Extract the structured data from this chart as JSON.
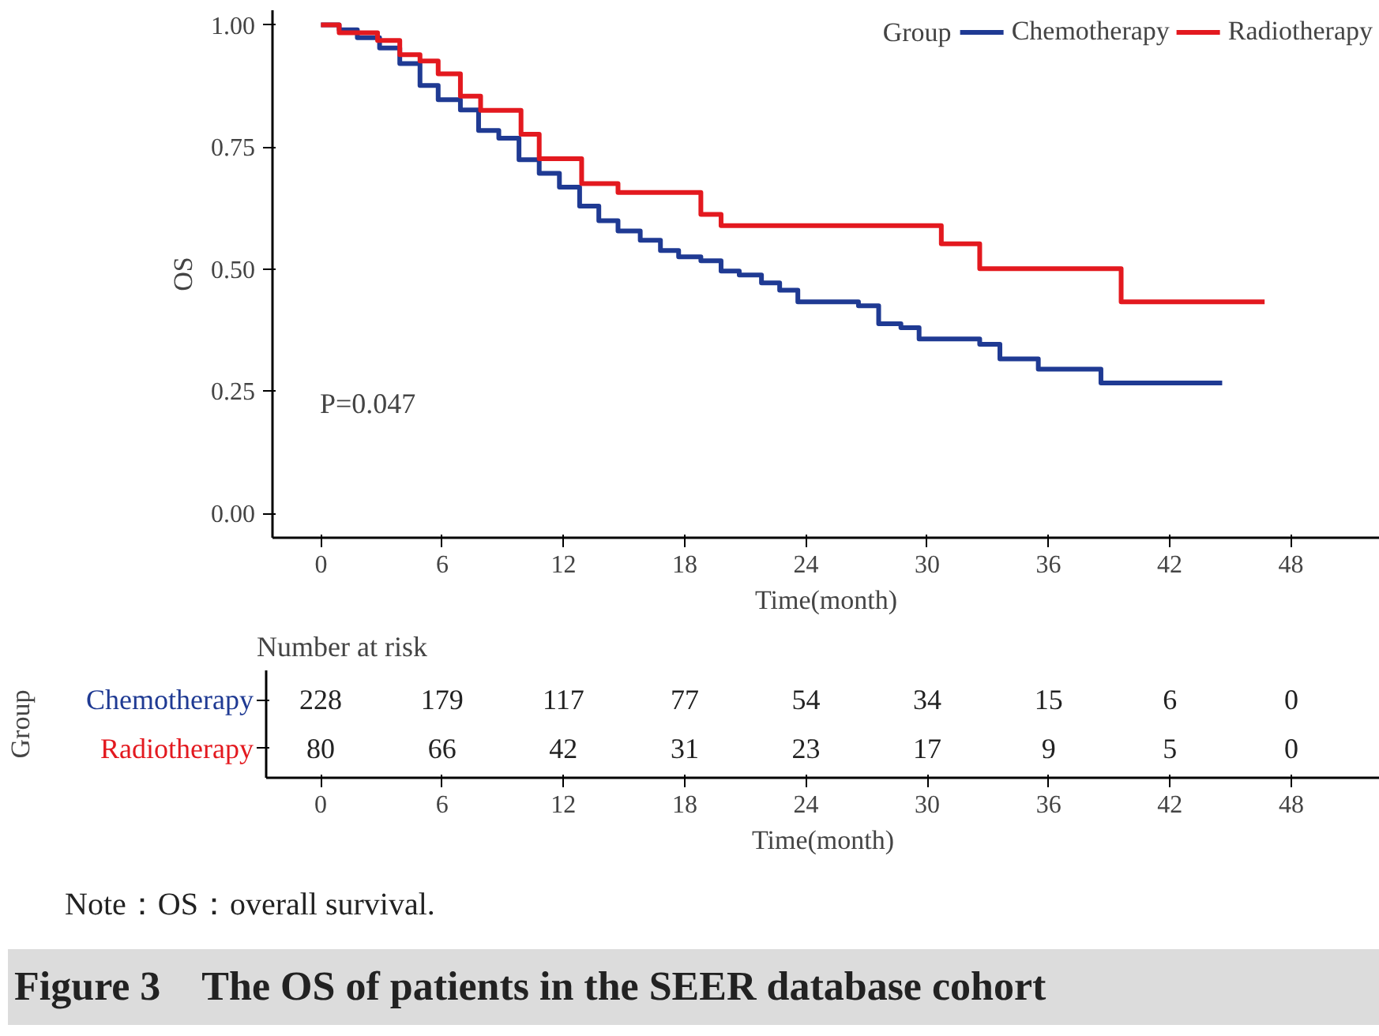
{
  "chart_data": [
    {
      "type": "step",
      "title": "Figure 3　The OS of patients in the SEER database cohort",
      "xlabel": "Time(month)",
      "ylabel": "OS",
      "legend_title": "Group",
      "legend": "top right",
      "grid": false,
      "line_style": "solid",
      "xlim": [
        -2.4,
        52.4
      ],
      "ylim": [
        -0.05,
        1.03
      ],
      "xticks": [
        0,
        6,
        12,
        18,
        24,
        30,
        36,
        42,
        48
      ],
      "yticks": [
        {
          "value": 0,
          "label": "0.00"
        },
        {
          "value": 0.25,
          "label": "0.25"
        },
        {
          "value": 0.5,
          "label": "0.50"
        },
        {
          "value": 0.75,
          "label": "0.75"
        },
        {
          "value": 1,
          "label": "1.00"
        }
      ],
      "series": [
        {
          "name": "Chemotherapy",
          "color": "#1f3a93",
          "x": [
            0,
            0.9,
            1.8,
            2.9,
            3.9,
            4.9,
            5.8,
            6.9,
            7.8,
            8.8,
            9.8,
            10.8,
            11.8,
            12.8,
            13.75,
            14.7,
            15.8,
            16.8,
            17.7,
            18.8,
            19.8,
            20.7,
            21.8,
            22.7,
            23.6,
            26.6,
            27.6,
            28.7,
            29.6,
            32.6,
            33.6,
            35.5,
            38.6,
            44.6
          ],
          "values": [
            1.0,
            0.99,
            0.974,
            0.953,
            0.921,
            0.876,
            0.847,
            0.826,
            0.784,
            0.768,
            0.724,
            0.696,
            0.668,
            0.629,
            0.599,
            0.578,
            0.559,
            0.538,
            0.525,
            0.517,
            0.496,
            0.488,
            0.472,
            0.457,
            0.433,
            0.425,
            0.388,
            0.38,
            0.357,
            0.346,
            0.316,
            0.295,
            0.267,
            0.267
          ]
        },
        {
          "name": "Radiotherapy",
          "color": "#e3191f",
          "x": [
            0,
            0.9,
            2.8,
            3.9,
            4.9,
            5.8,
            6.9,
            7.9,
            9.9,
            10.8,
            12.9,
            14.7,
            18.8,
            19.8,
            30.7,
            32.6,
            39.6,
            46.7
          ],
          "values": [
            1.0,
            0.984,
            0.968,
            0.939,
            0.926,
            0.9,
            0.854,
            0.825,
            0.776,
            0.726,
            0.675,
            0.657,
            0.612,
            0.589,
            0.552,
            0.501,
            0.433,
            0.433
          ]
        }
      ],
      "annotations": [
        "P=0.047"
      ]
    },
    {
      "type": "heatmap",
      "title": "Number at risk",
      "xlabel": "Time(month)",
      "ylabel": "Group",
      "data_labels": true,
      "categories": [
        "0",
        "6",
        "12",
        "18",
        "24",
        "30",
        "36",
        "42",
        "48"
      ],
      "y_categories": [
        "Chemotherapy",
        "Radiotherapy"
      ],
      "cells": [
        [
          228,
          179,
          117,
          77,
          54,
          34,
          15,
          6,
          0
        ],
        [
          80,
          66,
          42,
          31,
          23,
          17,
          9,
          5,
          0
        ]
      ],
      "annotations": [
        "Note：OS：overall survival."
      ]
    }
  ]
}
